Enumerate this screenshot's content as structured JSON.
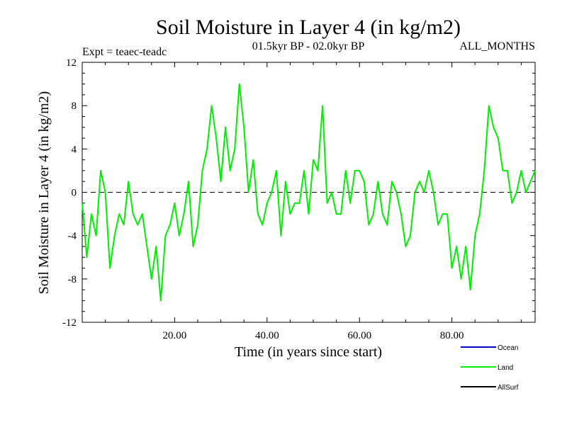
{
  "chart_data": {
    "type": "line",
    "title": "Soil Moisture in Layer 4 (in kg/m2)",
    "subtitle_left": "Expt = teaec-teadc",
    "subtitle_center": "01.5kyr BP - 02.0kyr BP",
    "subtitle_right": "ALL_MONTHS",
    "xlabel": "Time (in years since start)",
    "ylabel": "Soil Moisture in Layer 4 (in kg/m2)",
    "xlim": [
      0,
      98
    ],
    "ylim": [
      -12,
      12
    ],
    "x_ticks": [
      20,
      40,
      60,
      80
    ],
    "x_tick_labels": [
      "20.00",
      "40.00",
      "60.00",
      "80.00"
    ],
    "y_ticks": [
      -12,
      -8,
      -4,
      0,
      4,
      8,
      12
    ],
    "y_tick_labels": [
      "-12",
      "-8",
      "-4",
      "0",
      "4",
      "8",
      "12"
    ],
    "zero_line": 0,
    "legend": [
      {
        "name": "Ocean",
        "color": "#0000cc"
      },
      {
        "name": "Land",
        "color": "#00ee00"
      },
      {
        "name": "AllSurf",
        "color": "#000000"
      }
    ],
    "series": [
      {
        "name": "Land",
        "color": "#00ee00",
        "x": [
          0,
          1,
          2,
          3,
          4,
          5,
          6,
          7,
          8,
          9,
          10,
          11,
          12,
          13,
          14,
          15,
          16,
          17,
          18,
          19,
          20,
          21,
          22,
          23,
          24,
          25,
          26,
          27,
          28,
          29,
          30,
          31,
          32,
          33,
          34,
          35,
          36,
          37,
          38,
          39,
          40,
          41,
          42,
          43,
          44,
          45,
          46,
          47,
          48,
          49,
          50,
          51,
          52,
          53,
          54,
          55,
          56,
          57,
          58,
          59,
          60,
          61,
          62,
          63,
          64,
          65,
          66,
          67,
          68,
          69,
          70,
          71,
          72,
          73,
          74,
          75,
          76,
          77,
          78,
          79,
          80,
          81,
          82,
          83,
          84,
          85,
          86,
          87,
          88,
          89,
          90,
          91,
          92,
          93,
          94,
          95,
          96,
          97,
          98
        ],
        "values": [
          -1,
          -6,
          -2,
          -4,
          2,
          0,
          -7,
          -4,
          -2,
          -3,
          1,
          -2,
          -3,
          -2,
          -5,
          -8,
          -5,
          -10,
          -4,
          -3,
          -1,
          -4,
          -2,
          1,
          -5,
          -3,
          2,
          4,
          8,
          5,
          1,
          6,
          2,
          4,
          10,
          6,
          0,
          3,
          -2,
          -3,
          -1,
          0,
          2,
          -4,
          1,
          -2,
          -1,
          -1,
          2,
          -2,
          3,
          2,
          8,
          -1,
          0,
          -2,
          -2,
          2,
          -1,
          2,
          2,
          1,
          -3,
          -2,
          1,
          -2,
          -3,
          1,
          0,
          -2,
          -5,
          -4,
          0,
          1,
          0,
          2,
          0,
          -3,
          -2,
          -2,
          -7,
          -5,
          -8,
          -5,
          -9,
          -4,
          -2,
          2,
          8,
          6,
          5,
          2,
          2,
          -1,
          0,
          2,
          0,
          1,
          2
        ]
      }
    ]
  }
}
